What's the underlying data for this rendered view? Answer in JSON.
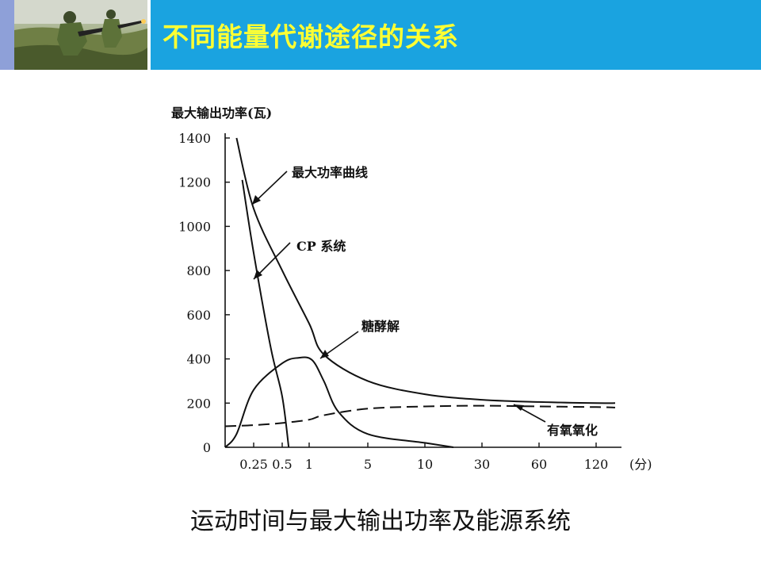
{
  "header": {
    "title": "不同能量代谢途径的关系",
    "photo_icon": "soldiers-training-photo",
    "colors": {
      "bar": "#1aa3e0",
      "title": "#ffff33",
      "strip": "#8ea0d8"
    }
  },
  "caption": "运动时间与最大输出功率及能源系统",
  "chart_data": {
    "type": "line",
    "ylabel": "最大输出功率(瓦)",
    "ylim": [
      0,
      1400
    ],
    "yticks": [
      "0",
      "200",
      "400",
      "600",
      "800",
      "1000",
      "1200",
      "1400"
    ],
    "xlabel": "(分)",
    "xticks": [
      "0.25",
      "0.5",
      "1",
      "5",
      "10",
      "30",
      "60",
      "120"
    ],
    "grid": false,
    "series": [
      {
        "name": "最大功率曲线",
        "style": "solid",
        "points": [
          [
            0.1,
            1400
          ],
          [
            0.25,
            1080
          ],
          [
            0.5,
            800
          ],
          [
            1,
            560
          ],
          [
            2,
            420
          ],
          [
            5,
            300
          ],
          [
            10,
            240
          ],
          [
            30,
            215
          ],
          [
            60,
            205
          ],
          [
            120,
            200
          ],
          [
            180,
            200
          ]
        ]
      },
      {
        "name": "CP 系统",
        "style": "solid",
        "points": [
          [
            0.15,
            1210
          ],
          [
            0.25,
            880
          ],
          [
            0.4,
            450
          ],
          [
            0.5,
            230
          ],
          [
            0.62,
            0
          ]
        ]
      },
      {
        "name": "糖酵解",
        "style": "solid",
        "points": [
          [
            0,
            0
          ],
          [
            0.1,
            60
          ],
          [
            0.25,
            260
          ],
          [
            0.5,
            380
          ],
          [
            0.8,
            405
          ],
          [
            1.2,
            395
          ],
          [
            2,
            300
          ],
          [
            3,
            160
          ],
          [
            5,
            60
          ],
          [
            10,
            20
          ],
          [
            20,
            0
          ]
        ]
      },
      {
        "name": "有氧氧化",
        "style": "dashed",
        "points": [
          [
            0,
            95
          ],
          [
            0.25,
            100
          ],
          [
            0.5,
            110
          ],
          [
            1,
            125
          ],
          [
            2,
            145
          ],
          [
            5,
            175
          ],
          [
            10,
            185
          ],
          [
            30,
            188
          ],
          [
            60,
            185
          ],
          [
            120,
            182
          ],
          [
            180,
            180
          ]
        ]
      }
    ]
  }
}
